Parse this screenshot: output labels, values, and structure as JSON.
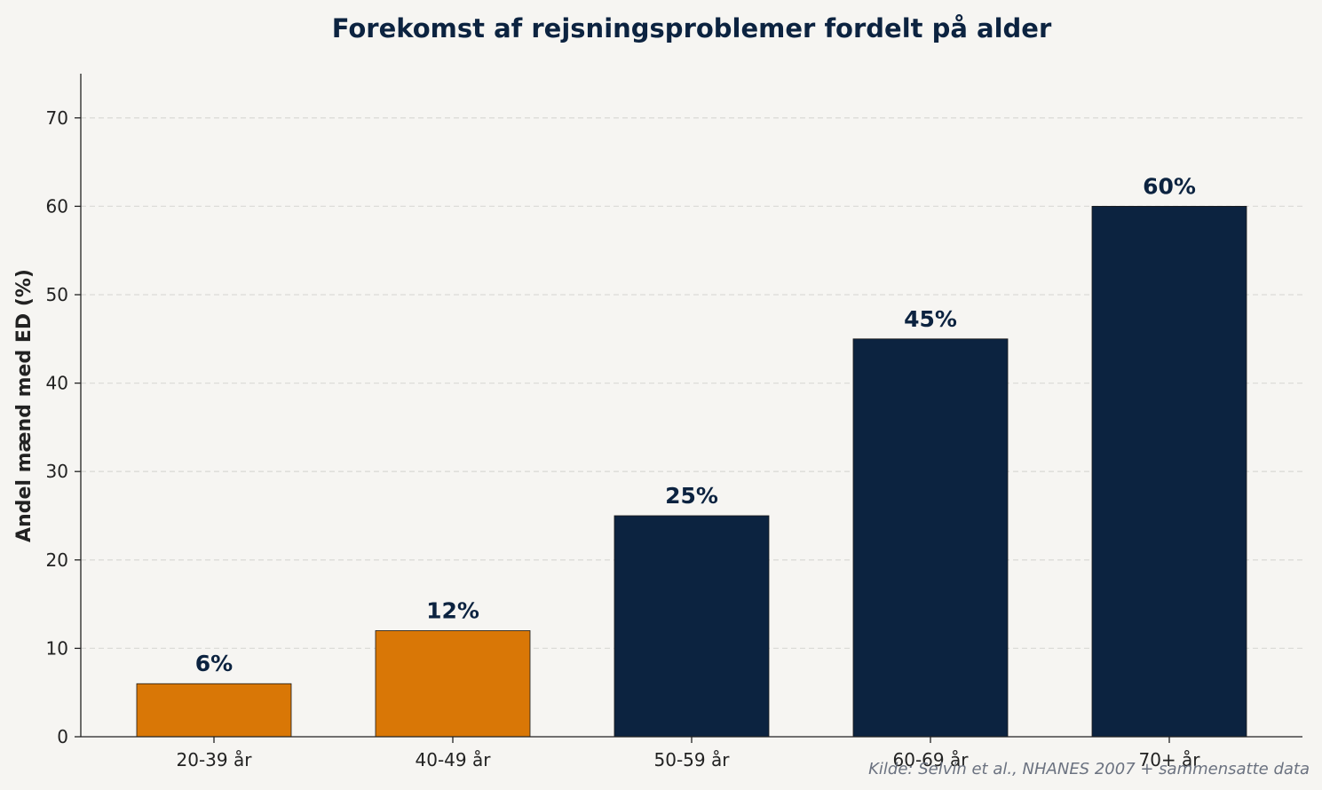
{
  "chart_data": {
    "type": "bar",
    "title": "Forekomst af rejsningsproblemer fordelt på alder",
    "xlabel": "",
    "ylabel": "Andel mænd med ED (%)",
    "categories": [
      "20-39 år",
      "40-49 år",
      "50-59 år",
      "60-69 år",
      "70+ år"
    ],
    "values": [
      6,
      12,
      25,
      45,
      60
    ],
    "value_labels": [
      "6%",
      "12%",
      "25%",
      "45%",
      "60%"
    ],
    "bar_colors": [
      "#d97706",
      "#d97706",
      "#0c2340",
      "#0c2340",
      "#0c2340"
    ],
    "ylim": [
      0,
      75
    ],
    "yticks": [
      0,
      10,
      20,
      30,
      40,
      50,
      60,
      70
    ],
    "grid": "y-dashed",
    "legend": "none",
    "source": "Kilde: Selvin et al., NHANES 2007 + sammensatte data"
  },
  "colors": {
    "background": "#f6f5f2",
    "accent_orange": "#d97706",
    "navy": "#0c2340",
    "grid": "#dcdcd8",
    "source_text": "#6b7280"
  }
}
